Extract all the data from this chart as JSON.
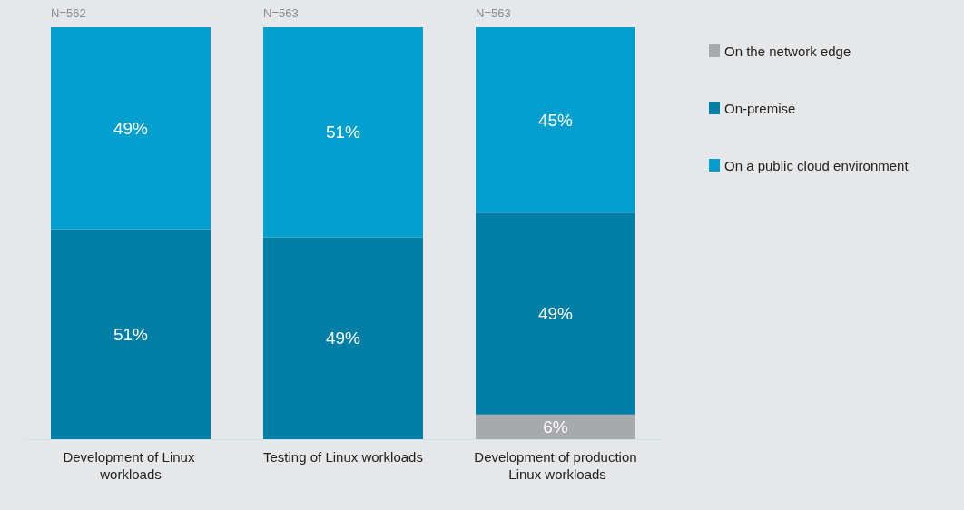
{
  "chart_data": {
    "type": "bar",
    "stacked": true,
    "legend": "right",
    "categories": [
      "Development of Linux workloads",
      "Testing of Linux workloads",
      "Development of production Linux workloads"
    ],
    "series": [
      {
        "name": "On the network edge",
        "color": "#a7a9ac",
        "values": [
          null,
          null,
          6
        ],
        "value_labels": [
          null,
          null,
          "6%"
        ]
      },
      {
        "name": "On-premise",
        "color": "#007ea5",
        "values": [
          51,
          49,
          49
        ],
        "value_labels": [
          "51%",
          "49%",
          "49%"
        ]
      },
      {
        "name": "On a public cloud environment",
        "color": "#009fcd",
        "values": [
          49,
          51,
          45
        ],
        "value_labels": [
          "49%",
          "51%",
          "45%"
        ]
      }
    ],
    "annotations": [
      "N=562",
      "N=563",
      "N=563"
    ]
  }
}
